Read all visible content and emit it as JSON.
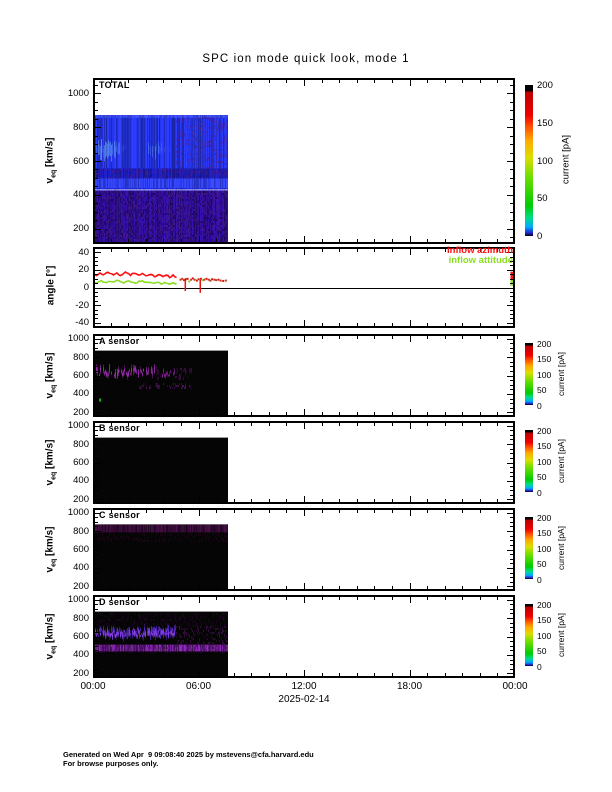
{
  "page": {
    "title": "SPC ion mode quick look, mode 1",
    "background": "#ffffff"
  },
  "footer": {
    "line1": "Generated on Wed Apr  9 09:08:40 2025 by mstevens@cfa.harvard.edu",
    "line2": "For browse purposes only."
  },
  "axes": {
    "x_ticks": [
      "00:00",
      "06:00",
      "12:00",
      "18:00",
      "00:00"
    ],
    "x_hours": [
      0,
      6,
      12,
      18,
      24
    ],
    "x_minor_step_hours": 1,
    "date_label": "2025-02-14",
    "velocity_ticks": [
      "1000",
      "800",
      "600",
      "400",
      "200"
    ],
    "velocity_tick_values": [
      1000,
      800,
      600,
      400,
      200
    ],
    "velocity_axis_label": {
      "base": "v",
      "sub": "eq",
      "unit": " [km/s]"
    },
    "angle_ticks": [
      "40",
      "20",
      "0",
      "-20",
      "-40"
    ],
    "angle_tick_values": [
      40,
      20,
      0,
      -20,
      -40
    ],
    "angle_axis_label": "angle [°]"
  },
  "colorbar": {
    "label": "current [pA]",
    "ticks": [
      "200",
      "150",
      "100",
      "50",
      "0"
    ],
    "tick_values": [
      200,
      150,
      100,
      50,
      0
    ],
    "gradient_stops": [
      [
        0,
        "#000010"
      ],
      [
        0.02,
        "#2222cc"
      ],
      [
        0.06,
        "#00aaff"
      ],
      [
        0.12,
        "#00dd88"
      ],
      [
        0.2,
        "#00cc00"
      ],
      [
        0.38,
        "#66dd00"
      ],
      [
        0.52,
        "#dddd00"
      ],
      [
        0.63,
        "#ffaa00"
      ],
      [
        0.72,
        "#ff5500"
      ],
      [
        0.8,
        "#ee0000"
      ],
      [
        0.955,
        "#bb0000"
      ],
      [
        0.96,
        "#000000"
      ],
      [
        1,
        "#000000"
      ]
    ]
  },
  "chart_data": {
    "type": "heatmap",
    "time_range_hours": [
      0,
      24
    ],
    "data_end_hour": 7.7,
    "date": "2025-02-14",
    "panels": [
      {
        "id": "total",
        "title": "TOTAL",
        "type": "heatmap",
        "y_range": [
          110,
          1090
        ],
        "data_v_top": 870,
        "background": "none",
        "bands": [
          {
            "v": [
              425,
              870
            ],
            "t": [
              0,
              7.7
            ],
            "style": "columns",
            "color": "#2127d8",
            "noise": 0.18
          },
          {
            "v": [
              555,
              870
            ],
            "t": [
              0,
              7.7
            ],
            "style": "columns",
            "color": "#2533e4",
            "noise": 0.28
          },
          {
            "v": [
              855,
              870
            ],
            "t": [
              0,
              7.7
            ],
            "style": "columns",
            "color": "#3a4af0",
            "noise": 0.2
          },
          {
            "v": [
              570,
              780
            ],
            "t": [
              0,
              4.7
            ],
            "style": "patchy",
            "color": "#62a0f5",
            "center": 665,
            "spread": 85
          },
          {
            "v": [
              555,
              860
            ],
            "t": [
              4.7,
              7.7
            ],
            "style": "speckle",
            "color": "#4a1f90",
            "noise": 0.45
          },
          {
            "v": [
              495,
              555
            ],
            "t": [
              0,
              7.7
            ],
            "style": "columns",
            "color": "#1a1cae",
            "noise": 0.22
          },
          {
            "v": [
              498,
              553
            ],
            "t": [
              0,
              7.7
            ],
            "style": "speckle",
            "color": "#55188a",
            "noise": 0.5
          },
          {
            "v": [
              440,
              497
            ],
            "t": [
              0,
              7.7
            ],
            "style": "columns",
            "color": "#3040f2",
            "noise": 0.22
          },
          {
            "v": [
              426,
              434
            ],
            "t": [
              0,
              7.7
            ],
            "style": "columns",
            "color": "#9094e8",
            "noise": 0.12
          },
          {
            "v": [
              110,
              425
            ],
            "t": [
              0,
              7.7
            ],
            "style": "columns",
            "color": "#2d0d94",
            "noise": 0.26
          },
          {
            "v": [
              110,
              425
            ],
            "t": [
              0,
              7.7
            ],
            "style": "speckle",
            "color": "#180448",
            "noise": 0.5
          },
          {
            "v": [
              110,
              425
            ],
            "t": [
              0,
              7.7
            ],
            "style": "speckle",
            "color": "#4a1a86",
            "noise": 0.4
          }
        ],
        "marks": []
      },
      {
        "id": "angle",
        "title": "",
        "type": "line",
        "y_range": [
          -46,
          46
        ],
        "zero_line": 0,
        "series": [
          {
            "name": "inflow azimuth",
            "color": "#ff1010",
            "t_start": 0,
            "t_end": 4.75,
            "values": [
              13.5,
              14.5,
              14,
              15,
              16,
              15.5,
              14.5,
              15,
              16.5,
              17,
              16,
              15,
              14.5,
              15.5,
              16,
              15,
              14,
              15,
              16,
              17,
              16.5,
              15,
              14,
              15.5,
              16.5,
              15.5,
              14.5,
              13.5,
              15,
              16,
              15,
              14,
              13.5,
              14.5,
              15.5,
              14.5,
              13,
              12.5,
              14,
              15,
              14,
              12.5,
              13.5,
              14.5,
              13,
              11.5,
              13,
              14,
              12.5,
              11
            ]
          },
          {
            "name": "inflow attitude",
            "color": "#8ae020",
            "t_start": 0,
            "t_end": 4.75,
            "values": [
              6,
              6.5,
              5.5,
              6,
              7,
              7.5,
              6.5,
              6,
              5.5,
              6.5,
              7,
              6.5,
              6,
              7,
              7.5,
              8,
              7,
              6,
              5.5,
              6,
              7,
              7.5,
              7,
              6.5,
              5.5,
              5,
              6,
              7,
              7.5,
              7,
              6.5,
              5.5,
              6,
              6.5,
              6,
              5,
              4.5,
              5.5,
              6,
              5.5,
              4.5,
              5,
              6,
              5.5,
              4.5,
              4,
              5,
              5.5,
              4.5,
              3.5
            ]
          }
        ],
        "scatter": [
          {
            "t": 4.92,
            "v": 10,
            "color": "#e03000"
          },
          {
            "t": 5.02,
            "v": 11,
            "color": "#c03010"
          },
          {
            "t": 5.12,
            "v": 9.5,
            "color": "#e01010"
          },
          {
            "t": 5.22,
            "v": 10.5,
            "color": "#a03010"
          },
          {
            "t": 5.32,
            "v": 11,
            "color": "#e01010"
          },
          {
            "t": 5.42,
            "v": 8,
            "color": "#80c020"
          },
          {
            "t": 5.52,
            "v": 10,
            "color": "#c84010"
          },
          {
            "t": 5.62,
            "v": 11.5,
            "color": "#e01010"
          },
          {
            "t": 5.72,
            "v": 10,
            "color": "#a03818"
          },
          {
            "t": 5.85,
            "v": 9,
            "color": "#e01010"
          },
          {
            "t": 5.95,
            "v": 10.5,
            "color": "#c03010"
          },
          {
            "t": 6.08,
            "v": 11,
            "color": "#e01010"
          },
          {
            "t": 6.18,
            "v": 9.5,
            "color": "#80c020"
          },
          {
            "t": 6.28,
            "v": 10,
            "color": "#b03818"
          },
          {
            "t": 6.4,
            "v": 11,
            "color": "#e01010"
          },
          {
            "t": 6.52,
            "v": 10,
            "color": "#c03010"
          },
          {
            "t": 6.62,
            "v": 9,
            "color": "#a03818"
          },
          {
            "t": 6.72,
            "v": 10.5,
            "color": "#e01010"
          },
          {
            "t": 6.85,
            "v": 10,
            "color": "#c03010"
          },
          {
            "t": 6.95,
            "v": 9.5,
            "color": "#b04020"
          },
          {
            "t": 7.08,
            "v": 10,
            "color": "#e01010"
          },
          {
            "t": 7.2,
            "v": 9,
            "color": "#c03010"
          },
          {
            "t": 7.35,
            "v": 8.5,
            "color": "#e01010"
          },
          {
            "t": 7.5,
            "v": 9,
            "color": "#c04818"
          }
        ],
        "dashes": [
          {
            "t": 5.25,
            "v0": -4,
            "v1": 10,
            "color": "#e81010"
          },
          {
            "t": 6.1,
            "v0": -6,
            "v1": 9,
            "color": "#e81010"
          }
        ],
        "edge_marks": [
          {
            "v0": 9,
            "v1": 18,
            "color": "#ff1414"
          },
          {
            "v0": 2,
            "v1": 9,
            "color": "#8ae020"
          }
        ]
      },
      {
        "id": "a",
        "title": "A sensor",
        "type": "heatmap",
        "y_range": [
          150,
          1050
        ],
        "data_v_top": 870,
        "background": "#050505",
        "bands": [
          {
            "v": [
              540,
              770
            ],
            "t": [
              0,
              3.6
            ],
            "style": "blobs",
            "color": "#a02cb4",
            "center": 635,
            "spread": 75
          },
          {
            "v": [
              540,
              730
            ],
            "t": [
              3.95,
              4.65
            ],
            "style": "blobs",
            "color": "#9224a6",
            "center": 620,
            "spread": 55
          },
          {
            "v": [
              560,
              700
            ],
            "t": [
              3.6,
              3.95
            ],
            "style": "speckle",
            "color": "#4c0e54",
            "noise": 0.5
          },
          {
            "v": [
              470,
              525
            ],
            "t": [
              2.6,
              5.6
            ],
            "style": "speckle",
            "color": "#6d1680",
            "noise": 0.4
          },
          {
            "v": [
              555,
              690
            ],
            "t": [
              4.65,
              5.65
            ],
            "style": "speckle",
            "color": "#531060",
            "noise": 0.5
          }
        ],
        "marks": [
          {
            "t": 0.35,
            "v": 350,
            "color": "#28b428"
          }
        ]
      },
      {
        "id": "b",
        "title": "B sensor",
        "type": "heatmap",
        "y_range": [
          150,
          1050
        ],
        "data_v_top": 870,
        "background": "#050505",
        "bands": [],
        "marks": []
      },
      {
        "id": "c",
        "title": "C sensor",
        "type": "heatmap",
        "y_range": [
          150,
          1050
        ],
        "data_v_top": 870,
        "background": "#050505",
        "bands": [
          {
            "v": [
              785,
              870
            ],
            "t": [
              0,
              7.7
            ],
            "style": "columns",
            "color": "#300a30",
            "noise": 0.5
          },
          {
            "v": [
              700,
              790
            ],
            "t": [
              0,
              7.7
            ],
            "style": "speckle",
            "color": "#26061f",
            "noise": 0.4
          }
        ],
        "marks": []
      },
      {
        "id": "d",
        "title": "D sensor",
        "type": "heatmap",
        "y_range": [
          150,
          1050
        ],
        "data_v_top": 870,
        "background": "#050505",
        "bands": [
          {
            "v": [
              510,
              805
            ],
            "t": [
              0,
              4.7
            ],
            "style": "blobs",
            "color": "#5a28cc",
            "center": 645,
            "spread": 85
          },
          {
            "v": [
              535,
              710
            ],
            "t": [
              0,
              4.7
            ],
            "style": "blobs",
            "color": "#8a42e8",
            "center": 630,
            "spread": 55
          },
          {
            "v": [
              438,
              512
            ],
            "t": [
              0,
              7.7
            ],
            "style": "columns",
            "color": "#6a1e8a",
            "noise": 0.4
          },
          {
            "v": [
              438,
              512
            ],
            "t": [
              0,
              7.7
            ],
            "style": "speckle",
            "color": "#35094a",
            "noise": 0.5
          },
          {
            "v": [
              500,
              720
            ],
            "t": [
              4.7,
              7.7
            ],
            "style": "speckle",
            "color": "#4a1058",
            "noise": 0.55
          },
          {
            "v": [
              720,
              860
            ],
            "t": [
              0,
              7.7
            ],
            "style": "speckle",
            "color": "#26062c",
            "noise": 0.35
          }
        ],
        "marks": []
      }
    ]
  }
}
